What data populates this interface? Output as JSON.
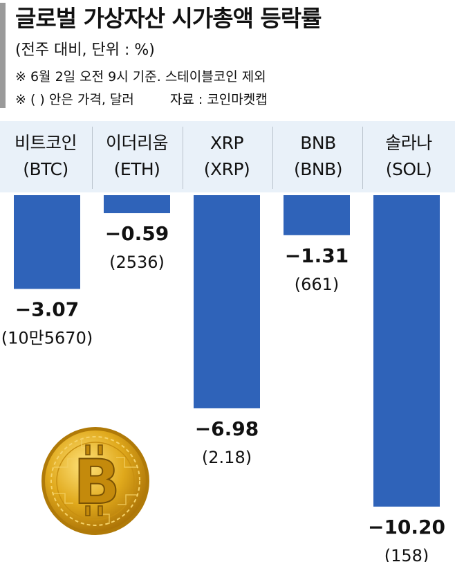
{
  "header": {
    "title": "글로벌 가상자산 시가총액 등락률",
    "subtitle": "(전주 대비, 단위 : %)",
    "note1": "※ 6월 2일 오전 9시 기준. 스테이블코인 제외",
    "note2": "※ (  ) 안은 가격, 달러",
    "source": "자료 : 코인마켓캡"
  },
  "columns": [
    {
      "name": "비트코인",
      "ticker": "(BTC)"
    },
    {
      "name": "이더리움",
      "ticker": "(ETH)"
    },
    {
      "name": "XRP",
      "ticker": "(XRP)"
    },
    {
      "name": "BNB",
      "ticker": "(BNB)"
    },
    {
      "name": "솔라나",
      "ticker": "(SOL)"
    }
  ],
  "colors": {
    "bar": "#2f63b9",
    "header_band": "#e9f1f9",
    "coin_gold": "#e0a91c"
  },
  "coin_icon": "bitcoin-coin-icon",
  "chart_data": {
    "type": "bar",
    "categories": [
      "비트코인 (BTC)",
      "이더리움 (ETH)",
      "XRP (XRP)",
      "BNB (BNB)",
      "솔라나 (SOL)"
    ],
    "values": [
      -3.07,
      -0.59,
      -6.98,
      -1.31,
      -10.2
    ],
    "value_labels": [
      "−3.07",
      "−0.59",
      "−6.98",
      "−1.31",
      "−10.20"
    ],
    "price_labels": [
      "(10만5670)",
      "(2536)",
      "(2.18)",
      "(661)",
      "(158)"
    ],
    "ylim": [
      -10.2,
      0
    ],
    "grid": false,
    "legend": "none"
  }
}
